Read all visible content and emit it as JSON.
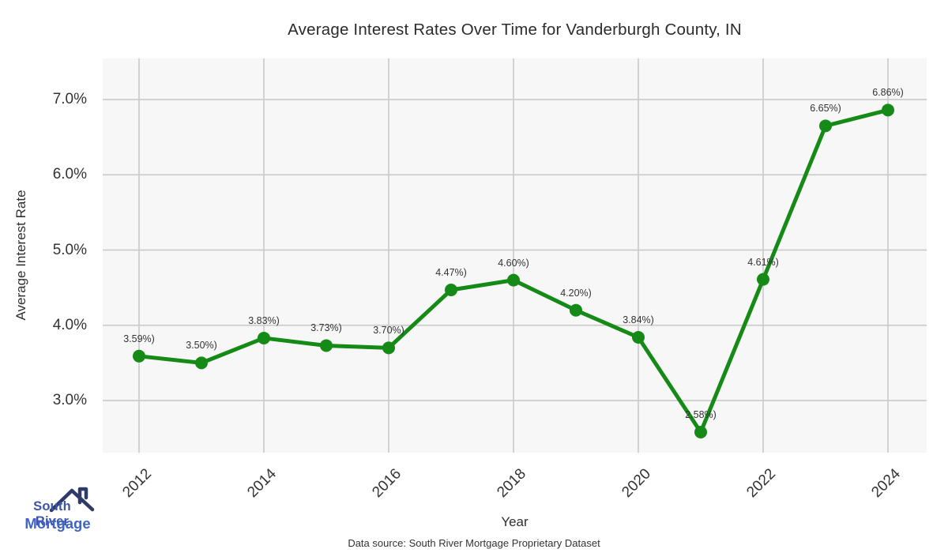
{
  "title": "Average Interest Rates Over Time for Vanderburgh County, IN",
  "chart_data": {
    "type": "line",
    "title": "Average Interest Rates Over Time for Vanderburgh County, IN",
    "xlabel": "Year",
    "ylabel": "Average Interest Rate",
    "x": [
      2012,
      2013,
      2014,
      2015,
      2016,
      2017,
      2018,
      2019,
      2020,
      2021,
      2022,
      2023,
      2024
    ],
    "values": [
      3.59,
      3.5,
      3.83,
      3.73,
      3.7,
      4.47,
      4.6,
      4.2,
      3.84,
      2.58,
      4.61,
      6.65,
      6.86
    ],
    "point_labels": [
      "3.59%)",
      "3.50%)",
      "3.83%)",
      "3.73%)",
      "3.70%)",
      "4.47%)",
      "4.60%)",
      "4.20%)",
      "3.84%)",
      "2.58%)",
      "4.61%)",
      "6.65%)",
      "6.86%)"
    ],
    "x_ticks": [
      "2012",
      "2014",
      "2016",
      "2018",
      "2020",
      "2022",
      "2024"
    ],
    "x_tick_values": [
      2012,
      2014,
      2016,
      2018,
      2020,
      2022,
      2024
    ],
    "y_ticks": [
      "3.0%",
      "4.0%",
      "5.0%",
      "6.0%",
      "7.0%"
    ],
    "y_tick_values": [
      3,
      4,
      5,
      6,
      7
    ],
    "ylim": [
      2.31,
      7.55
    ],
    "xlim": [
      2011.42,
      2024.62
    ],
    "grid": true,
    "legend": false,
    "line_color": "#168a16",
    "marker_color": "#168a16",
    "plot_bg": "#f7f7f7",
    "grid_color": "#cccccc"
  },
  "footer": {
    "source": "Data source: South River Mortgage Proprietary Dataset"
  },
  "logo": {
    "line1": "South River",
    "line2": "Mortgage",
    "roof_color": "#2e3a68",
    "line1_color": "#3c55a6",
    "line2_color": "#3f63c8"
  }
}
